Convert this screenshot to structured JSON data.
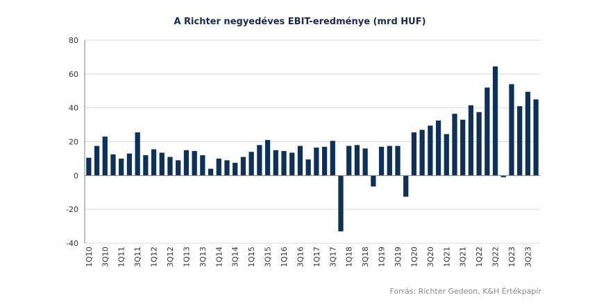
{
  "chart_data": {
    "type": "bar",
    "title": "A Richter negyedéves  EBIT-eredménye  (mrd HUF)",
    "xlabel": "",
    "ylabel": "",
    "ylim": [
      -40,
      80
    ],
    "yticks": [
      -40,
      -20,
      0,
      20,
      40,
      60,
      80
    ],
    "grid": true,
    "bar_color": "#0d3159",
    "categories": [
      "1Q10",
      "2Q10",
      "3Q10",
      "4Q10",
      "1Q11",
      "2Q11",
      "3Q11",
      "4Q11",
      "1Q12",
      "2Q12",
      "3Q12",
      "4Q12",
      "1Q13",
      "2Q13",
      "3Q13",
      "4Q13",
      "1Q14",
      "2Q14",
      "3Q14",
      "4Q14",
      "1Q15",
      "2Q15",
      "3Q15",
      "4Q15",
      "1Q16",
      "2Q16",
      "3Q16",
      "4Q16",
      "1Q17",
      "2Q17",
      "3Q17",
      "4Q17",
      "1Q18",
      "2Q18",
      "3Q18",
      "4Q18",
      "1Q19",
      "2Q19",
      "3Q19",
      "4Q19",
      "1Q20",
      "2Q20",
      "3Q20",
      "4Q20",
      "1Q21",
      "2Q21",
      "3Q21",
      "4Q21",
      "1Q22",
      "2Q22",
      "3Q22",
      "4Q22",
      "1Q23",
      "2Q23",
      "3Q23",
      "4Q23"
    ],
    "tick_labels": [
      "1Q10",
      "3Q10",
      "1Q11",
      "3Q11",
      "1Q12",
      "3Q12",
      "1Q13",
      "3Q13",
      "1Q14",
      "3Q14",
      "1Q15",
      "3Q15",
      "1Q16",
      "3Q16",
      "1Q17",
      "3Q17",
      "1Q18",
      "3Q18",
      "1Q19",
      "3Q19",
      "1Q20",
      "3Q20",
      "1Q21",
      "3Q21",
      "1Q22",
      "3Q22",
      "1Q23",
      "3Q23"
    ],
    "values": [
      10.5,
      17.5,
      23.0,
      12.5,
      10.0,
      13.0,
      25.5,
      12.0,
      15.5,
      13.5,
      11.0,
      9.0,
      15.0,
      14.5,
      12.0,
      4.0,
      10.0,
      9.0,
      7.5,
      11.0,
      14.0,
      18.0,
      21.0,
      15.0,
      14.5,
      13.5,
      17.5,
      9.5,
      16.5,
      17.0,
      20.5,
      -33.0,
      17.5,
      18.0,
      16.0,
      -6.5,
      17.0,
      17.5,
      17.5,
      -12.5,
      25.5,
      27.0,
      29.5,
      32.5,
      24.5,
      36.5,
      33.0,
      41.5,
      37.5,
      52.0,
      64.5,
      -1.0,
      54.0,
      41.0,
      49.5,
      45.0
    ],
    "source": "Forrás: Richter Gedeon, K&H Értékpapír"
  }
}
